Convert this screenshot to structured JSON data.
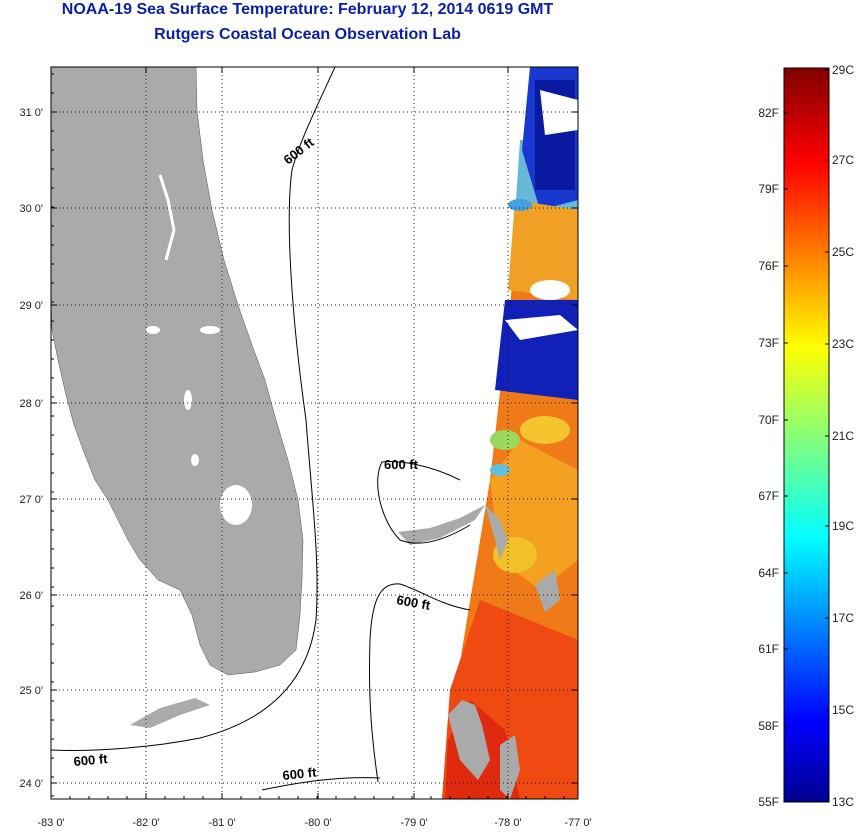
{
  "title": "NOAA-19 Sea Surface Temperature:  February 12, 2014 0619 GMT",
  "subtitle": "Rutgers Coastal Ocean Observation Lab",
  "map": {
    "longitude_labels": [
      "-83 0'",
      "-82 0'",
      "-81 0'",
      "-80 0'",
      "-79 0'",
      "-78 0'",
      "-77 0'"
    ],
    "latitude_labels": [
      "31 0'",
      "30 0'",
      "29 0'",
      "28 0'",
      "27 0'",
      "26 0'",
      "25 0'",
      "24 0'"
    ],
    "contour_labels": [
      "600 ft",
      "600 ft",
      "600 ft",
      "600 ft",
      "600 ft"
    ],
    "land_color": "#aaaaaa",
    "grid": "dotted"
  },
  "colorbar": {
    "fahrenheit_labels": [
      "82F",
      "79F",
      "76F",
      "73F",
      "70F",
      "67F",
      "64F",
      "61F",
      "58F",
      "55F"
    ],
    "celsius_labels": [
      "29C",
      "27C",
      "25C",
      "23C",
      "21C",
      "19C",
      "17C",
      "15C",
      "13C"
    ],
    "colormap": "jet",
    "min_color": "#00008f",
    "max_color": "#800000"
  }
}
